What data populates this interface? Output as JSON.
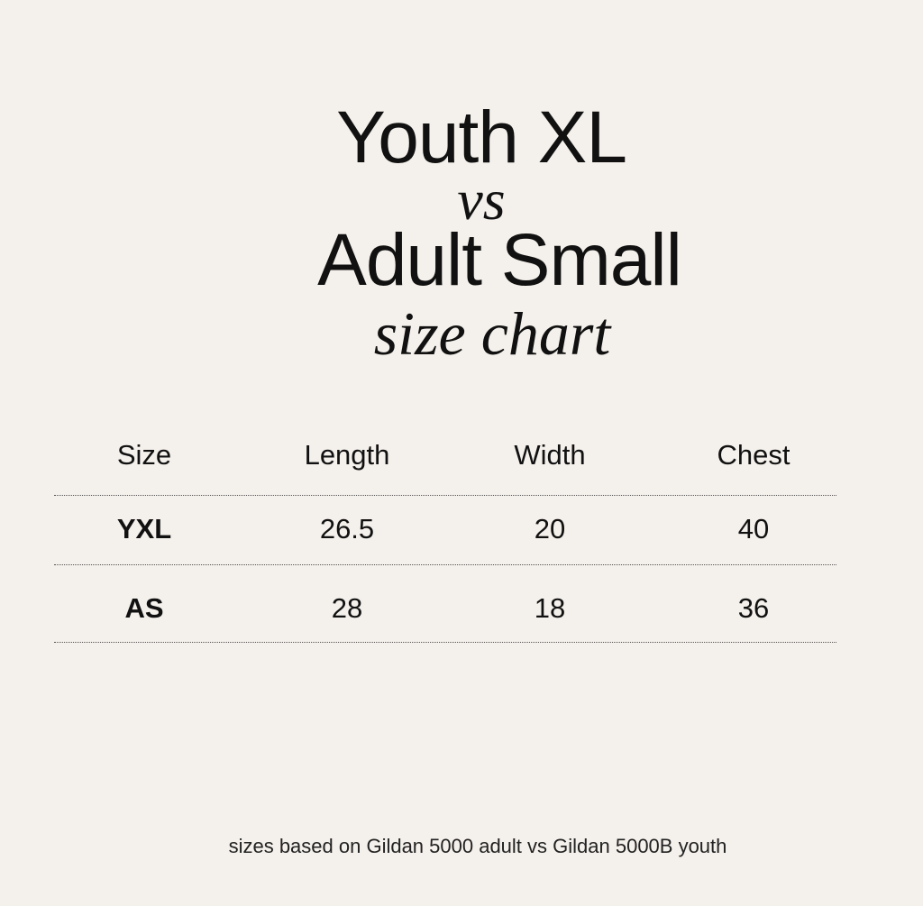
{
  "title": {
    "line1": "Youth XL",
    "connector": "vs",
    "line2": "Adult Small",
    "subtitle": "size chart"
  },
  "table": {
    "headers": [
      "Size",
      "Length",
      "Width",
      "Chest"
    ],
    "rows": [
      [
        "YXL",
        "26.5",
        "20",
        "40"
      ],
      [
        "AS",
        "28",
        "18",
        "36"
      ]
    ]
  },
  "footnote": "sizes based on Gildan 5000 adult vs Gildan 5000B youth",
  "colors": {
    "background": "#f4f0eb",
    "text": "#111111"
  }
}
